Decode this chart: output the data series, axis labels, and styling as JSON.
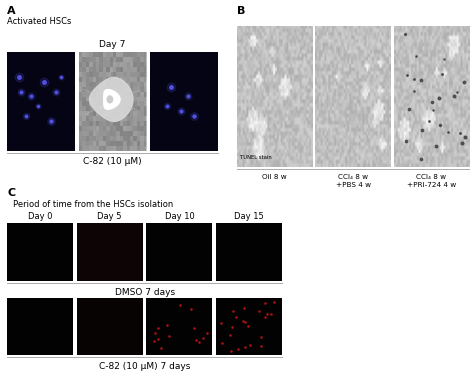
{
  "panel_A_label": "A",
  "panel_B_label": "B",
  "panel_C_label": "C",
  "panel_A_subtitle": "Activated HSCs",
  "panel_A_day_label": "Day 7",
  "panel_A_caption": "C-82 (10 μM)",
  "panel_B_tunel": "TUNEL stain",
  "panel_B_labels": [
    "Oil 8 w",
    "CCl₄ 8 w\n+PBS 4 w",
    "CCl₄ 8 w\n+PRI-724 4 w"
  ],
  "panel_C_subtitle": "Period of time from the HSCs isolation",
  "panel_C_day_labels": [
    "Day 0",
    "Day 5",
    "Day 10",
    "Day 15"
  ],
  "panel_C_row1_caption": "DMSO 7 days",
  "panel_C_row2_caption": "C-82 (10 μM) 7 days",
  "a1_bg": "#040415",
  "a2_bg": "#a0a0a0",
  "a3_bg": "#040415",
  "b_bg": "#c8c8c8",
  "c_dark_bg": "#050205",
  "c_r1d5_bg": "#0e0505",
  "c_r2d5_bg": "#0a0303",
  "blue_color": "#5555ee",
  "red_color": "#bb1111"
}
